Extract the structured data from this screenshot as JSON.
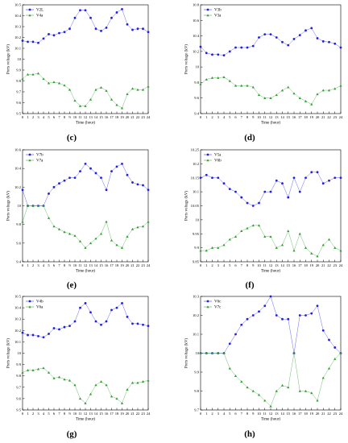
{
  "chart_data": [
    {
      "caption": "(c)",
      "type": "line",
      "xlabel": "Time (hour)",
      "ylabel": "Ports voltage (kV)",
      "ylim": [
        9.5,
        10.5
      ],
      "yticks": [
        "9.5",
        "9.6",
        "9.7",
        "9.8",
        "9.9",
        "10",
        "10.1",
        "10.2",
        "10.3",
        "10.4",
        "10.5"
      ],
      "x": [
        0,
        1,
        2,
        3,
        4,
        5,
        6,
        7,
        8,
        9,
        10,
        11,
        12,
        13,
        14,
        15,
        16,
        17,
        18,
        19,
        20,
        21,
        22,
        23,
        24
      ],
      "legend_position": "top-left",
      "series": [
        {
          "name": "V2L",
          "color": "#1f1fe8",
          "marker": "circle",
          "values": [
            10.17,
            10.16,
            10.16,
            10.15,
            10.19,
            10.23,
            10.22,
            10.24,
            10.25,
            10.28,
            10.38,
            10.45,
            10.45,
            10.38,
            10.28,
            10.26,
            10.29,
            10.38,
            10.43,
            10.46,
            10.32,
            10.27,
            10.28,
            10.28,
            10.25
          ]
        },
        {
          "name": "V4a",
          "color": "#2e9e2e",
          "marker": "triangle",
          "values": [
            9.82,
            9.86,
            9.86,
            9.87,
            9.82,
            9.78,
            9.79,
            9.78,
            9.76,
            9.72,
            9.62,
            9.57,
            9.57,
            9.63,
            9.72,
            9.74,
            9.71,
            9.63,
            9.58,
            9.55,
            9.68,
            9.73,
            9.72,
            9.72,
            9.75
          ]
        }
      ]
    },
    {
      "caption": "(d)",
      "type": "line",
      "xlabel": "Time (hour)",
      "ylabel": "Ports voltage (kV)",
      "ylim": [
        9.4,
        10.8
      ],
      "yticks": [
        "9.4",
        "9.6",
        "9.8",
        "10",
        "10.2",
        "10.4",
        "10.6",
        "10.8"
      ],
      "x": [
        0,
        1,
        2,
        3,
        4,
        5,
        6,
        7,
        8,
        9,
        10,
        11,
        12,
        13,
        14,
        15,
        16,
        17,
        18,
        19,
        20,
        21,
        22,
        23,
        24
      ],
      "legend_position": "top-left",
      "series": [
        {
          "name": "V3b",
          "color": "#1f1fe8",
          "marker": "circle",
          "values": [
            10.26,
            10.18,
            10.16,
            10.16,
            10.15,
            10.2,
            10.25,
            10.25,
            10.25,
            10.27,
            10.38,
            10.42,
            10.42,
            10.38,
            10.32,
            10.28,
            10.36,
            10.41,
            10.47,
            10.5,
            10.37,
            10.33,
            10.32,
            10.3,
            10.25
          ]
        },
        {
          "name": "V3a",
          "color": "#2e9e2e",
          "marker": "triangle",
          "values": [
            9.78,
            9.84,
            9.86,
            9.86,
            9.87,
            9.82,
            9.76,
            9.76,
            9.76,
            9.74,
            9.64,
            9.6,
            9.6,
            9.64,
            9.7,
            9.74,
            9.66,
            9.6,
            9.56,
            9.52,
            9.65,
            9.7,
            9.7,
            9.72,
            9.76
          ]
        }
      ]
    },
    {
      "caption": "(e)",
      "type": "line",
      "xlabel": "Time (hour)",
      "ylabel": "Ports voltage (kV)",
      "ylim": [
        9.4,
        10.6
      ],
      "yticks": [
        "9.4",
        "9.6",
        "9.8",
        "10",
        "10.2",
        "10.4",
        "10.6"
      ],
      "x": [
        0,
        1,
        2,
        3,
        4,
        5,
        6,
        7,
        8,
        9,
        10,
        11,
        12,
        13,
        14,
        15,
        16,
        17,
        18,
        19,
        20,
        21,
        22,
        23,
        24
      ],
      "legend_position": "top-left",
      "series": [
        {
          "name": "V7b",
          "color": "#1f1fe8",
          "marker": "circle",
          "values": [
            10.17,
            10.0,
            10.0,
            10.0,
            10.0,
            10.13,
            10.2,
            10.24,
            10.27,
            10.3,
            10.3,
            10.37,
            10.45,
            10.4,
            10.35,
            10.3,
            10.17,
            10.37,
            10.42,
            10.45,
            10.33,
            10.25,
            10.23,
            10.22,
            10.17
          ]
        },
        {
          "name": "V7a",
          "color": "#2e9e2e",
          "marker": "triangle",
          "values": [
            9.83,
            10.0,
            10.0,
            10.0,
            10.0,
            9.87,
            9.78,
            9.75,
            9.72,
            9.7,
            9.68,
            9.62,
            9.55,
            9.6,
            9.65,
            9.7,
            9.83,
            9.63,
            9.58,
            9.55,
            9.67,
            9.75,
            9.77,
            9.78,
            9.83
          ]
        }
      ]
    },
    {
      "caption": "(f)",
      "type": "line",
      "xlabel": "Time (hour)",
      "ylabel": "Ports voltage (kV)",
      "ylim": [
        9.85,
        10.25
      ],
      "yticks": [
        "9.85",
        "9.9",
        "9.95",
        "10",
        "10.05",
        "10.1",
        "10.15",
        "10.2",
        "10.25"
      ],
      "x": [
        0,
        1,
        2,
        3,
        4,
        5,
        6,
        7,
        8,
        9,
        10,
        11,
        12,
        13,
        14,
        15,
        16,
        17,
        18,
        19,
        20,
        21,
        22,
        23,
        24
      ],
      "legend_position": "top-left",
      "series": [
        {
          "name": "V5a",
          "color": "#1f1fe8",
          "marker": "circle",
          "values": [
            10.15,
            10.16,
            10.15,
            10.15,
            10.13,
            10.11,
            10.1,
            10.08,
            10.06,
            10.05,
            10.06,
            10.1,
            10.1,
            10.14,
            10.13,
            10.08,
            10.15,
            10.1,
            10.15,
            10.17,
            10.17,
            10.13,
            10.14,
            10.15,
            10.15
          ]
        },
        {
          "name": "V6b",
          "color": "#2e9e2e",
          "marker": "triangle",
          "values": [
            9.89,
            9.89,
            9.9,
            9.9,
            9.91,
            9.93,
            9.94,
            9.96,
            9.97,
            9.98,
            9.98,
            9.94,
            9.94,
            9.9,
            9.91,
            9.96,
            9.89,
            9.95,
            9.9,
            9.88,
            9.87,
            9.91,
            9.93,
            9.9,
            9.89
          ]
        }
      ]
    },
    {
      "caption": "(g)",
      "type": "line",
      "xlabel": "Time (hour)",
      "ylabel": "Ports voltage (kV)",
      "ylim": [
        9.5,
        10.5
      ],
      "yticks": [
        "9.5",
        "9.6",
        "9.7",
        "9.8",
        "9.9",
        "10",
        "10.1",
        "10.2",
        "10.3",
        "10.4",
        "10.5"
      ],
      "x": [
        0,
        1,
        2,
        3,
        4,
        5,
        6,
        7,
        8,
        9,
        10,
        11,
        12,
        13,
        14,
        15,
        16,
        17,
        18,
        19,
        20,
        21,
        22,
        23,
        24
      ],
      "legend_position": "top-left",
      "series": [
        {
          "name": "V4b",
          "color": "#1f1fe8",
          "marker": "circle",
          "values": [
            10.18,
            10.16,
            10.16,
            10.15,
            10.14,
            10.17,
            10.22,
            10.21,
            10.23,
            10.24,
            10.28,
            10.4,
            10.44,
            10.36,
            10.28,
            10.25,
            10.28,
            10.38,
            10.4,
            10.44,
            10.32,
            10.26,
            10.26,
            10.25,
            10.24
          ]
        },
        {
          "name": "V6a",
          "color": "#2e9e2e",
          "marker": "triangle",
          "values": [
            9.83,
            9.85,
            9.85,
            9.86,
            9.87,
            9.83,
            9.78,
            9.79,
            9.77,
            9.76,
            9.72,
            9.6,
            9.56,
            9.64,
            9.72,
            9.75,
            9.72,
            9.62,
            9.6,
            9.56,
            9.68,
            9.74,
            9.74,
            9.75,
            9.76
          ]
        }
      ]
    },
    {
      "caption": "(h)",
      "type": "line",
      "xlabel": "Time (hour)",
      "ylabel": "Ports voltage (kV)",
      "ylim": [
        9.7,
        10.3
      ],
      "yticks": [
        "9.7",
        "9.8",
        "9.9",
        "10",
        "10.1",
        "10.2",
        "10.3"
      ],
      "x": [
        0,
        1,
        2,
        3,
        4,
        5,
        6,
        7,
        8,
        9,
        10,
        11,
        12,
        13,
        14,
        15,
        16,
        17,
        18,
        19,
        20,
        21,
        22,
        23,
        24
      ],
      "legend_position": "top-left",
      "series": [
        {
          "name": "V6c",
          "color": "#1f1fe8",
          "marker": "circle",
          "values": [
            10.0,
            10.0,
            10.0,
            10.0,
            10.0,
            10.05,
            10.1,
            10.15,
            10.18,
            10.2,
            10.22,
            10.25,
            10.3,
            10.2,
            10.18,
            10.18,
            10.0,
            10.2,
            10.2,
            10.21,
            10.25,
            10.12,
            10.07,
            10.03,
            10.0
          ]
        },
        {
          "name": "V7c",
          "color": "#2e9e2e",
          "marker": "triangle",
          "values": [
            10.0,
            10.0,
            10.0,
            10.0,
            10.0,
            9.92,
            9.88,
            9.85,
            9.82,
            9.8,
            9.78,
            9.75,
            9.72,
            9.8,
            9.83,
            9.82,
            10.0,
            9.8,
            9.8,
            9.79,
            9.75,
            9.87,
            9.92,
            9.97,
            10.0
          ]
        }
      ]
    }
  ]
}
